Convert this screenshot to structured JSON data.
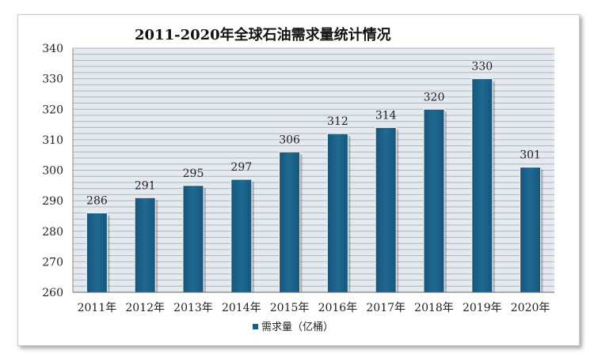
{
  "chart_data": {
    "type": "bar",
    "title": "2011-2020年全球石油需求量统计情况",
    "categories": [
      "2011年",
      "2012年",
      "2013年",
      "2014年",
      "2015年",
      "2016年",
      "2017年",
      "2018年",
      "2019年",
      "2020年"
    ],
    "series": [
      {
        "name": "需求量（亿桶）",
        "values": [
          286,
          291,
          295,
          297,
          306,
          312,
          314,
          320,
          330,
          301
        ]
      }
    ],
    "ylim": [
      260,
      340
    ],
    "yticks": [
      260,
      270,
      280,
      290,
      300,
      310,
      320,
      330,
      340
    ],
    "xlabel": "",
    "ylabel": "",
    "grid": true,
    "legend": "bottom",
    "colors": {
      "bar": "#1b6187",
      "plot_bg": "#e4eaef",
      "grid": "#aeb6bc"
    }
  }
}
